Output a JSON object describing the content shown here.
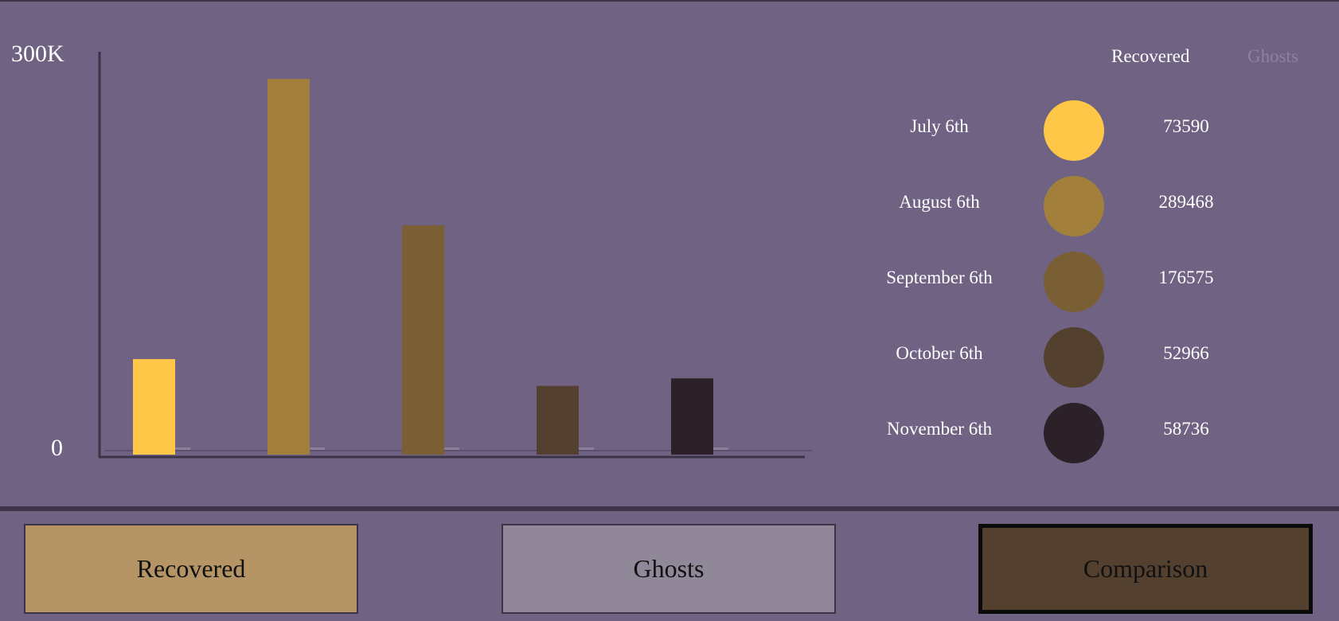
{
  "chart_data": {
    "type": "bar",
    "categories": [
      "July 6th",
      "August 6th",
      "September 6th",
      "October 6th",
      "November 6th"
    ],
    "values": [
      73590,
      289468,
      176575,
      52966,
      58736
    ],
    "colors": [
      "#ffc748",
      "#a27f3b",
      "#7a5f35",
      "#54402f",
      "#2c2129"
    ],
    "ylim": [
      0,
      300000
    ],
    "y_tick_labels": {
      "max": "300K",
      "min": "0"
    },
    "grid": false
  },
  "legend": {
    "tabs": [
      {
        "label": "Recovered",
        "active": true,
        "color": "#ffffff"
      },
      {
        "label": "Ghosts",
        "active": false,
        "color": "#8e829e"
      }
    ],
    "rows": [
      {
        "date": "July 6th",
        "value": "73590",
        "color": "#ffc748"
      },
      {
        "date": "August 6th",
        "value": "289468",
        "color": "#a27f3b"
      },
      {
        "date": "September 6th",
        "value": "176575",
        "color": "#7a5f35"
      },
      {
        "date": "October 6th",
        "value": "52966",
        "color": "#54402f"
      },
      {
        "date": "November 6th",
        "value": "58736",
        "color": "#2c2129"
      }
    ]
  },
  "buttons": [
    {
      "label": "Recovered",
      "color": "#b59466",
      "active": false
    },
    {
      "label": "Ghosts",
      "color": "#908799",
      "active": false
    },
    {
      "label": "Comparison",
      "color": "#54402f",
      "active": true
    }
  ]
}
